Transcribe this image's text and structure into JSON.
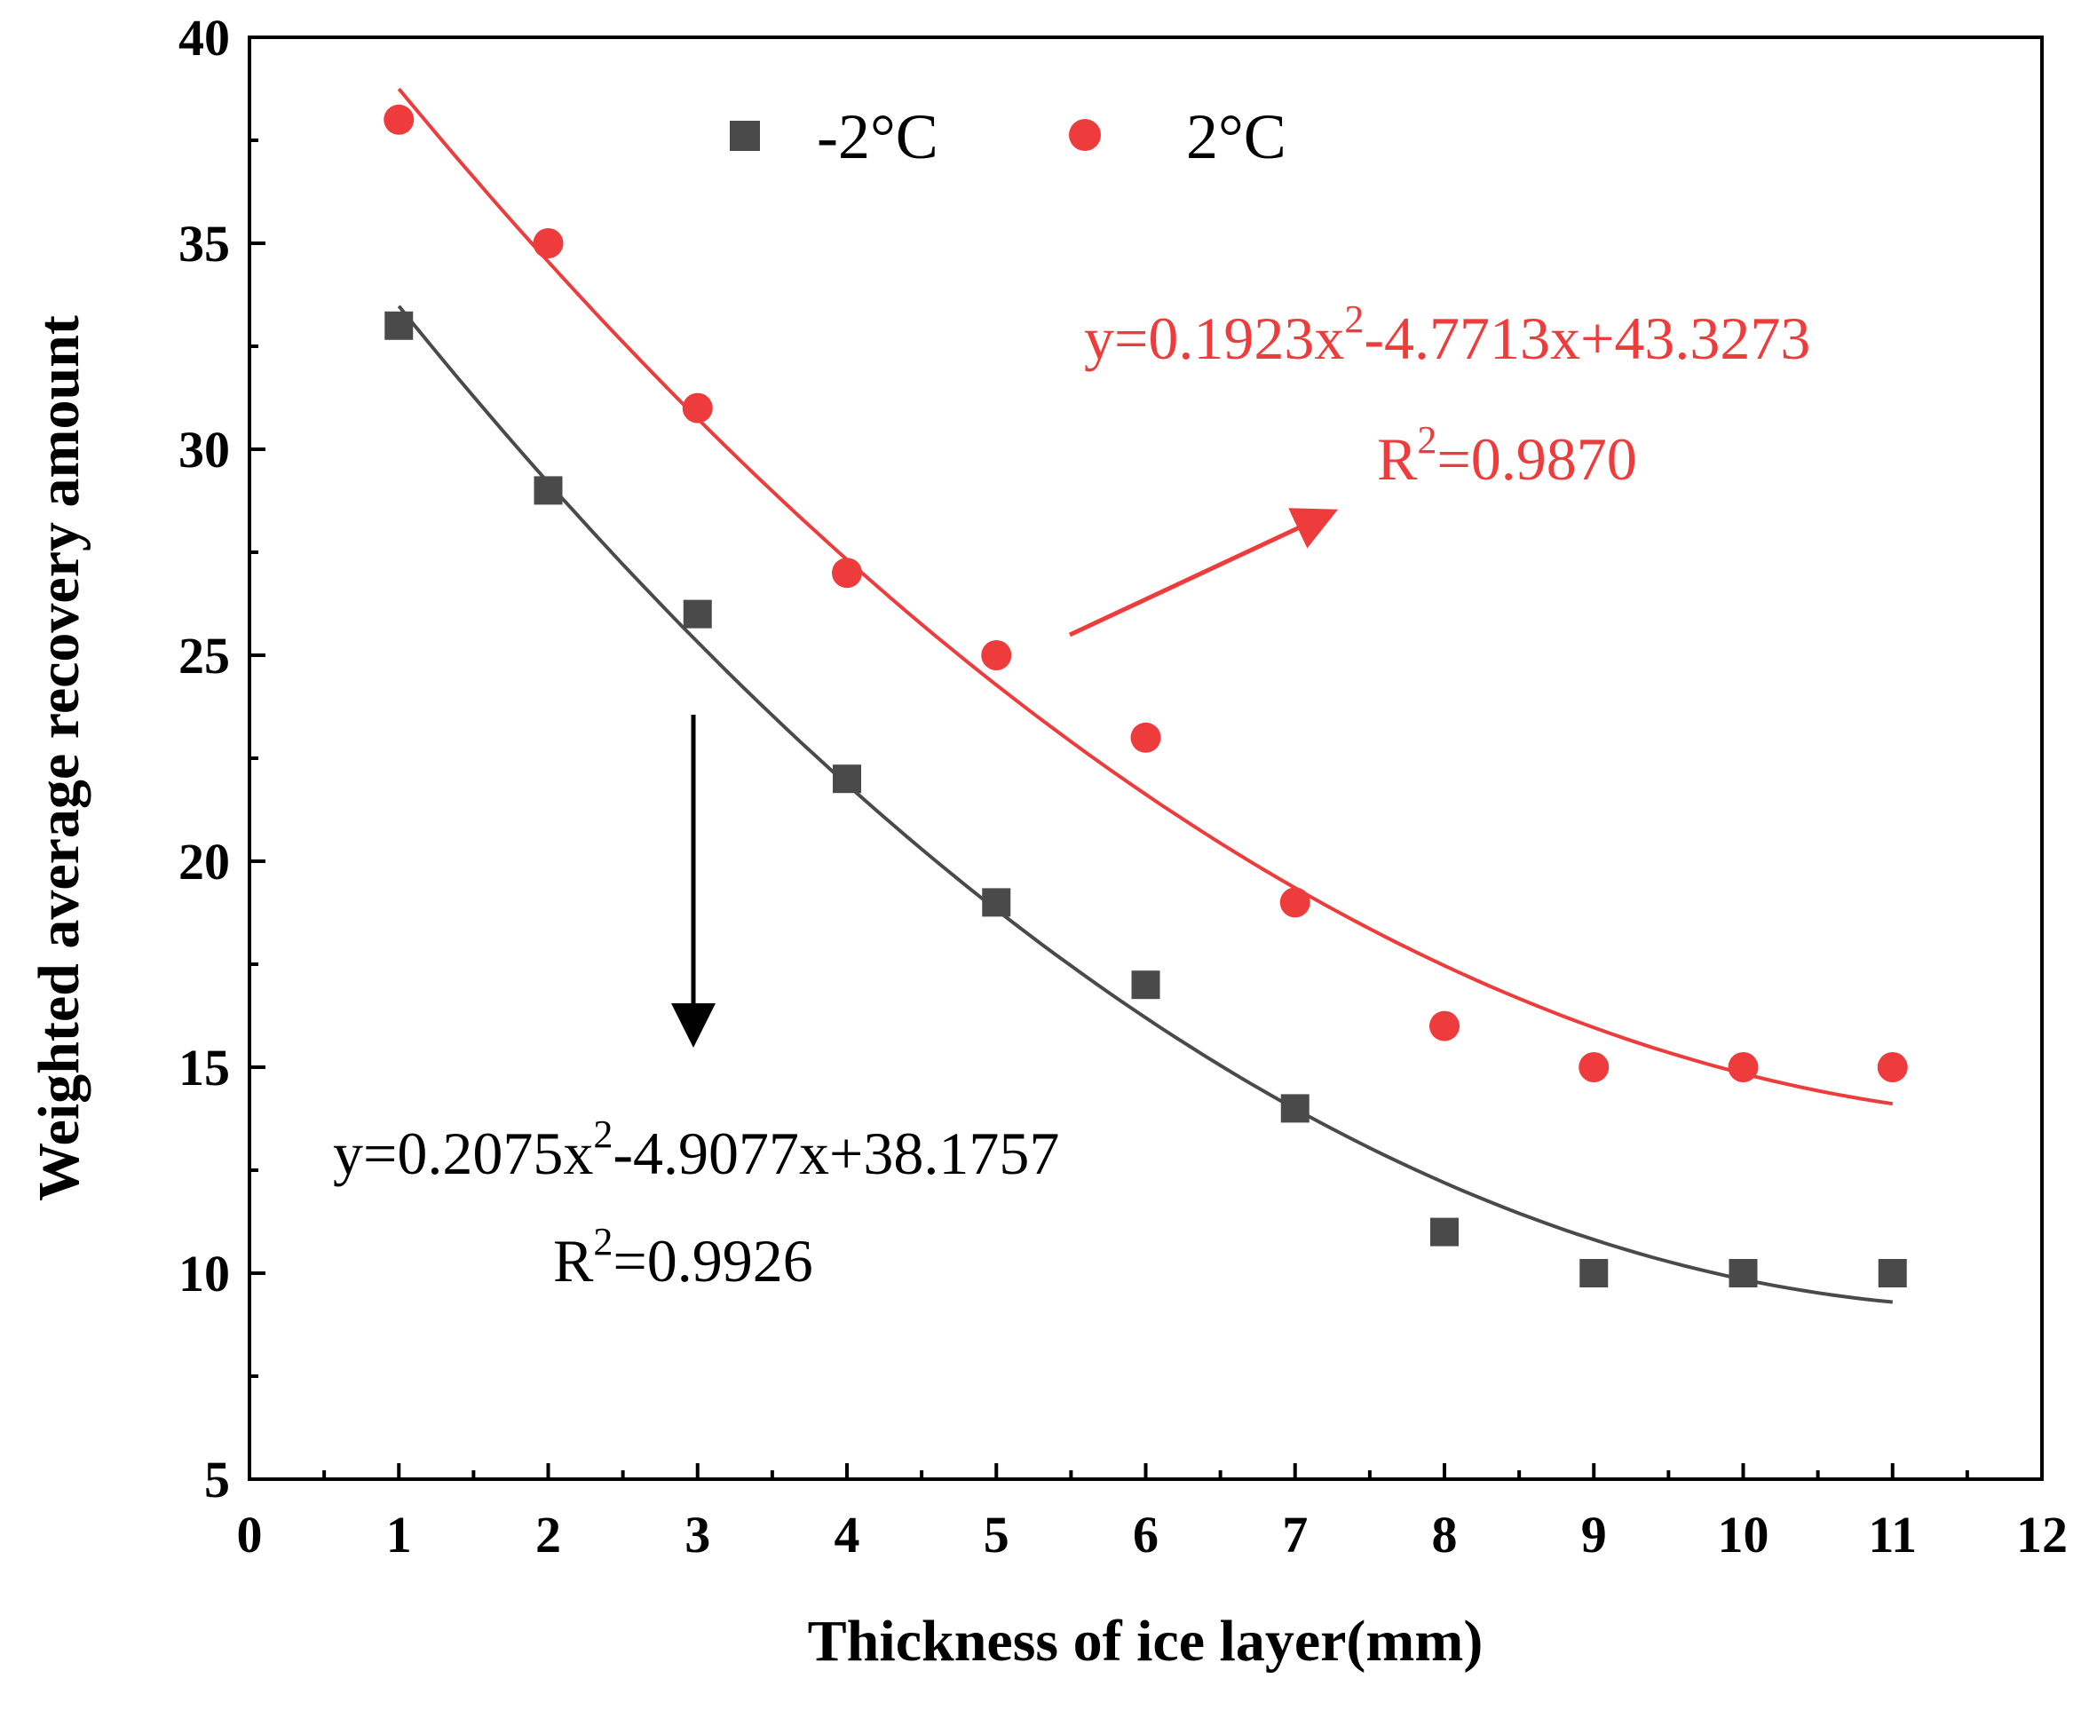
{
  "chart_data": {
    "type": "scatter",
    "xlabel": "Thickness of ice layer(mm)",
    "ylabel": "Weighted average recovery amount",
    "xlim": [
      0,
      12
    ],
    "ylim": [
      5,
      40
    ],
    "xticks": [
      0,
      1,
      2,
      3,
      4,
      5,
      6,
      7,
      8,
      9,
      10,
      11,
      12
    ],
    "yticks": [
      5,
      10,
      15,
      20,
      25,
      30,
      35,
      40
    ],
    "legend_position": "top",
    "series": [
      {
        "name": "-2°C",
        "marker": "square",
        "color": "#4a4a4a",
        "x": [
          1,
          2,
          3,
          4,
          5,
          6,
          7,
          8,
          9,
          10,
          11
        ],
        "values": [
          33,
          29,
          26,
          22,
          19,
          17,
          14,
          11,
          10,
          10,
          10
        ],
        "fit": {
          "a": 0.2075,
          "b": -4.9077,
          "c": 38.1757
        },
        "equation": {
          "prefix": "y=0.2075x",
          "sup": "2",
          "suffix": "-4.9077x+38.1757"
        },
        "r2": {
          "prefix": "R",
          "sup": "2",
          "suffix": "=0.9926"
        }
      },
      {
        "name": "2°C",
        "marker": "circle",
        "color": "#ee3b3b",
        "x": [
          1,
          2,
          3,
          4,
          5,
          6,
          7,
          8,
          9,
          10,
          11
        ],
        "values": [
          38,
          35,
          31,
          27,
          25,
          23,
          19,
          16,
          15,
          15,
          15
        ],
        "fit": {
          "a": 0.1923,
          "b": -4.7713,
          "c": 43.3273
        },
        "equation": {
          "prefix": "y=0.1923x",
          "sup": "2",
          "suffix": "-4.7713x+43.3273"
        },
        "r2": {
          "prefix": "R",
          "sup": "2",
          "suffix": "=0.9870"
        }
      }
    ]
  }
}
